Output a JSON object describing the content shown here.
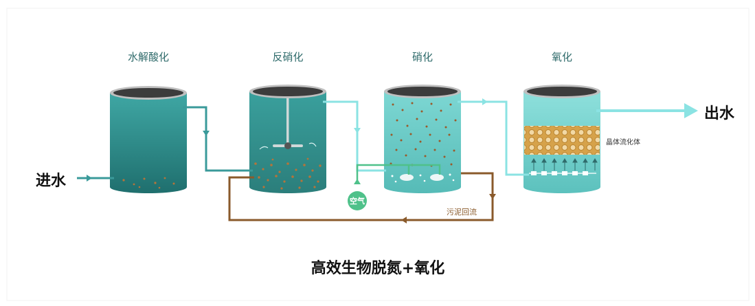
{
  "tanks": [
    {
      "title": "水解酸化"
    },
    {
      "title": "反硝化"
    },
    {
      "title": "硝化"
    },
    {
      "title": "氧化"
    }
  ],
  "inlet_label": "进水",
  "outlet_label": "出水",
  "air_label": "空气",
  "sludge_return_label": "污泥回流",
  "media_label": "晶体流化体",
  "caption": "高效生物脱氮+氧化",
  "colors": {
    "tank_dark": "#2f8f8f",
    "tank_light": "#7fd3d3",
    "pipe_teal": "#3a9a9a",
    "pipe_light": "#8be3e3",
    "sludge_brown": "#8a5a2b",
    "air_green": "#4fc18a",
    "media_gold": "#d6a24a"
  }
}
